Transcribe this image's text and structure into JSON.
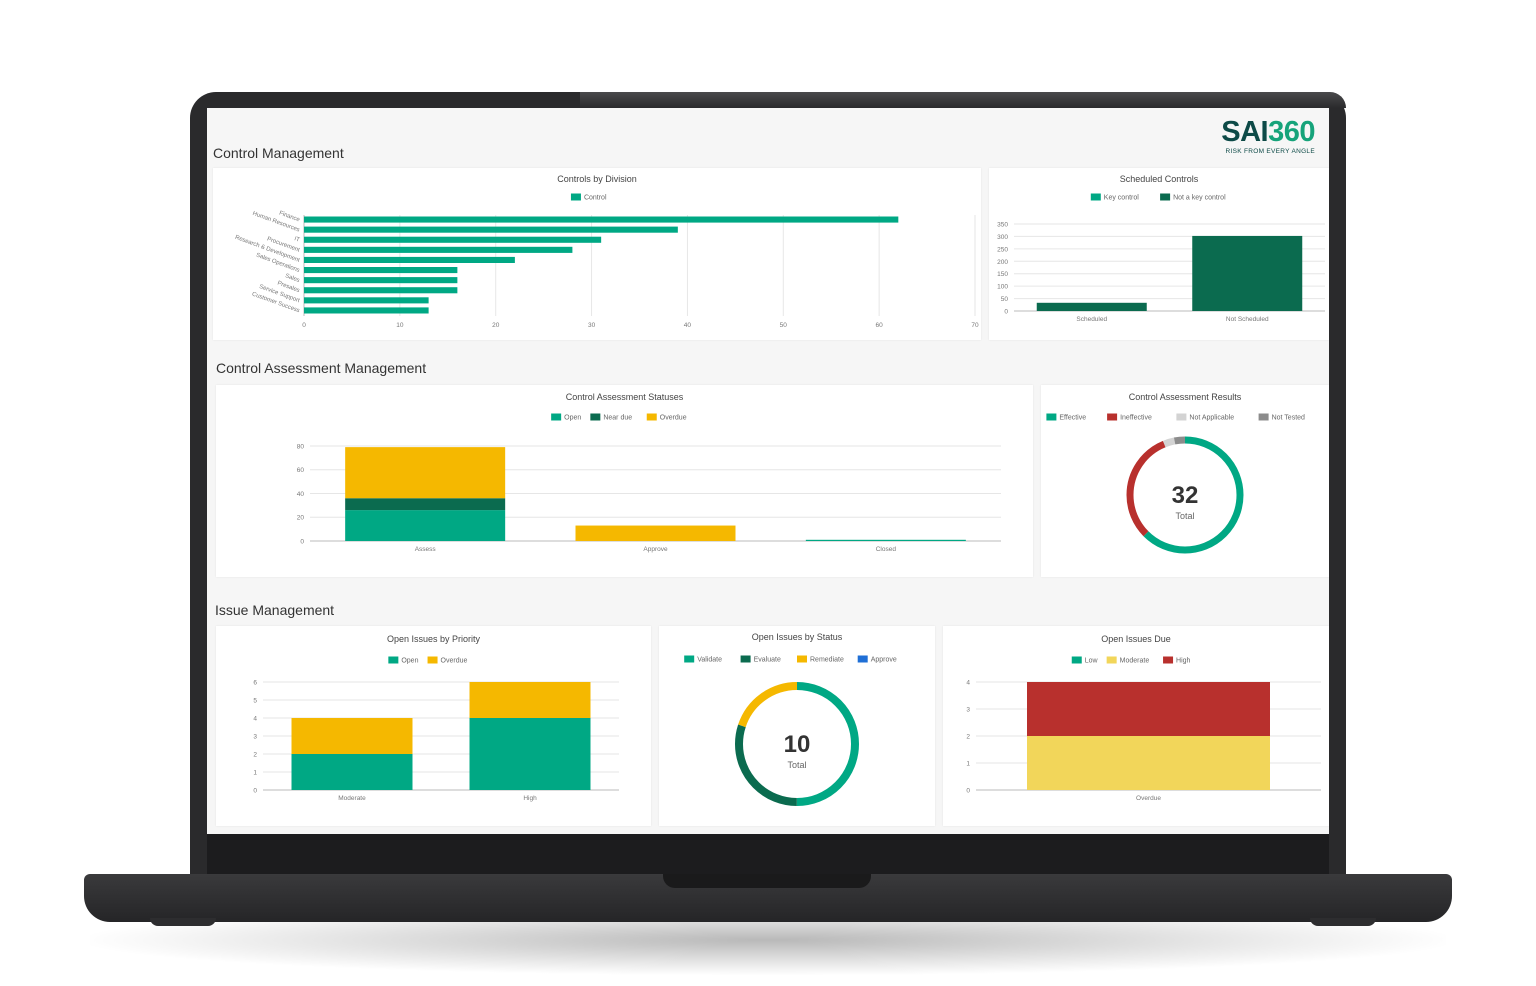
{
  "logo": {
    "brand_a": "SAI",
    "brand_b": "360",
    "tagline": "RISK FROM EVERY ANGLE"
  },
  "sections": {
    "control_management": "Control Management",
    "assessment_management": "Control Assessment Management",
    "issue_management": "Issue Management"
  },
  "colors": {
    "green": "#00a884",
    "dark_green": "#0b6b4f",
    "yellow": "#f5b800",
    "red": "#b8302d",
    "light_grey": "#d3d3d3",
    "grey": "#8c8c8c",
    "light_yellow": "#f2d65a",
    "blue": "#1f6fd6"
  },
  "chart_data": [
    {
      "id": "controls_by_division",
      "type": "bar",
      "orientation": "horizontal",
      "title": "Controls by Division",
      "legend": [
        "Control"
      ],
      "categories": [
        "Finance",
        "Human Resources",
        "IT",
        "Procurement",
        "Research & Development",
        "Sales Operations",
        "Sales",
        "Presales",
        "Service Support",
        "Customer Success"
      ],
      "values": [
        62,
        39,
        31,
        28,
        22,
        16,
        16,
        16,
        13,
        13
      ],
      "xticks": [
        "0",
        "10",
        "20",
        "30",
        "40",
        "50",
        "60",
        "70"
      ],
      "xlim": [
        0,
        70
      ]
    },
    {
      "id": "scheduled_controls",
      "type": "bar",
      "title": "Scheduled Controls",
      "legend": [
        "Key control",
        "Not a key control"
      ],
      "categories": [
        "Scheduled",
        "Not Scheduled"
      ],
      "series": [
        {
          "name": "Key control",
          "values": [
            0,
            0
          ]
        },
        {
          "name": "Not a key control",
          "values": [
            33,
            302
          ]
        }
      ],
      "yticks": [
        "0",
        "50",
        "100",
        "150",
        "200",
        "250",
        "300",
        "350"
      ],
      "ylim": [
        0,
        350
      ]
    },
    {
      "id": "control_assessment_statuses",
      "type": "bar",
      "stacked": true,
      "title": "Control Assessment Statuses",
      "legend": [
        "Open",
        "Near due",
        "Overdue"
      ],
      "categories": [
        "Assess",
        "Approve",
        "Closed"
      ],
      "series": [
        {
          "name": "Open",
          "values": [
            26,
            0,
            1
          ]
        },
        {
          "name": "Near due",
          "values": [
            10,
            0,
            0
          ]
        },
        {
          "name": "Overdue",
          "values": [
            43,
            13,
            0
          ]
        }
      ],
      "yticks": [
        "0",
        "20",
        "40",
        "60",
        "80"
      ],
      "ylim": [
        0,
        85
      ]
    },
    {
      "id": "control_assessment_results",
      "type": "pie",
      "donut": true,
      "title": "Control Assessment Results",
      "legend": [
        "Effective",
        "Ineffective",
        "Not Applicable",
        "Not Tested"
      ],
      "values": [
        20,
        10,
        1,
        1
      ],
      "center_value": "32",
      "center_label": "Total"
    },
    {
      "id": "open_issues_by_priority",
      "type": "bar",
      "stacked": true,
      "title": "Open Issues by Priority",
      "legend": [
        "Open",
        "Overdue"
      ],
      "categories": [
        "Moderate",
        "High"
      ],
      "series": [
        {
          "name": "Open",
          "values": [
            2,
            4
          ]
        },
        {
          "name": "Overdue",
          "values": [
            2,
            2
          ]
        }
      ],
      "yticks": [
        "0",
        "1",
        "2",
        "3",
        "4",
        "5",
        "6"
      ],
      "ylim": [
        0,
        6
      ]
    },
    {
      "id": "open_issues_by_status",
      "type": "pie",
      "donut": true,
      "title": "Open Issues by Status",
      "legend": [
        "Validate",
        "Evaluate",
        "Remediate",
        "Approve"
      ],
      "values": [
        5,
        3,
        2,
        0
      ],
      "center_value": "10",
      "center_label": "Total"
    },
    {
      "id": "open_issues_due",
      "type": "bar",
      "stacked": true,
      "title": "Open Issues Due",
      "legend": [
        "Low",
        "Moderate",
        "High"
      ],
      "categories": [
        "Overdue"
      ],
      "series": [
        {
          "name": "Low",
          "values": [
            0
          ]
        },
        {
          "name": "Moderate",
          "values": [
            2
          ]
        },
        {
          "name": "High",
          "values": [
            2
          ]
        }
      ],
      "yticks": [
        "0",
        "1",
        "2",
        "3",
        "4"
      ],
      "ylim": [
        0,
        4
      ]
    }
  ]
}
